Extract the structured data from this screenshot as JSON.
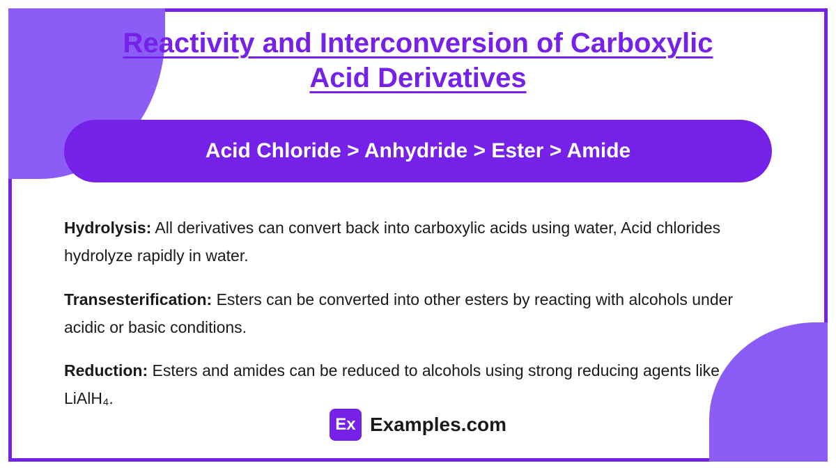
{
  "colors": {
    "accent": "#7521e8",
    "blob": "#8b5cf6",
    "text": "#1a1a1a",
    "white": "#ffffff"
  },
  "title": "Reactivity and Interconversion of Carboxylic Acid Derivatives",
  "pill": "Acid Chloride > Anhydride > Ester > Amide",
  "items": [
    {
      "label": "Hydrolysis:",
      "text": " All derivatives can convert back into carboxylic acids using water, Acid chlorides hydrolyze rapidly in water."
    },
    {
      "label": "Transesterification:",
      "text": " Esters can be converted into other esters by reacting with alcohols under acidic or basic conditions."
    },
    {
      "label": "Reduction:",
      "text": " Esters and amides can be reduced to alcohols using strong reducing agents like LiAlH₄."
    }
  ],
  "footer": {
    "logo_short": "Ex",
    "logo_text": "Examples.com"
  },
  "typography": {
    "title_fontsize": 40,
    "pill_fontsize": 30,
    "body_fontsize": 23,
    "footer_fontsize": 28
  }
}
